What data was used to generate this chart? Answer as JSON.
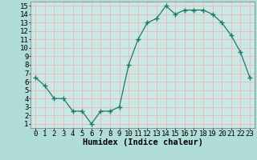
{
  "x": [
    0,
    1,
    2,
    3,
    4,
    5,
    6,
    7,
    8,
    9,
    10,
    11,
    12,
    13,
    14,
    15,
    16,
    17,
    18,
    19,
    20,
    21,
    22,
    23
  ],
  "y": [
    6.5,
    5.5,
    4.0,
    4.0,
    2.5,
    2.5,
    1.0,
    2.5,
    2.5,
    3.0,
    8.0,
    11.0,
    13.0,
    13.5,
    15.0,
    14.0,
    14.5,
    14.5,
    14.5,
    14.0,
    13.0,
    11.5,
    9.5,
    6.5
  ],
  "xlabel": "Humidex (Indice chaleur)",
  "line_color": "#1a7a6e",
  "marker_color": "#1a7a6e",
  "fig_bg_color": "#b0ddd8",
  "plot_bg": "#cce8e4",
  "grid_color": "#e8b8b8",
  "xlim": [
    -0.5,
    23.5
  ],
  "ylim": [
    0.5,
    15.5
  ],
  "yticks": [
    1,
    2,
    3,
    4,
    5,
    6,
    7,
    8,
    9,
    10,
    11,
    12,
    13,
    14,
    15
  ],
  "xticks": [
    0,
    1,
    2,
    3,
    4,
    5,
    6,
    7,
    8,
    9,
    10,
    11,
    12,
    13,
    14,
    15,
    16,
    17,
    18,
    19,
    20,
    21,
    22,
    23
  ],
  "xlabel_fontsize": 7.5,
  "tick_fontsize": 6.5
}
